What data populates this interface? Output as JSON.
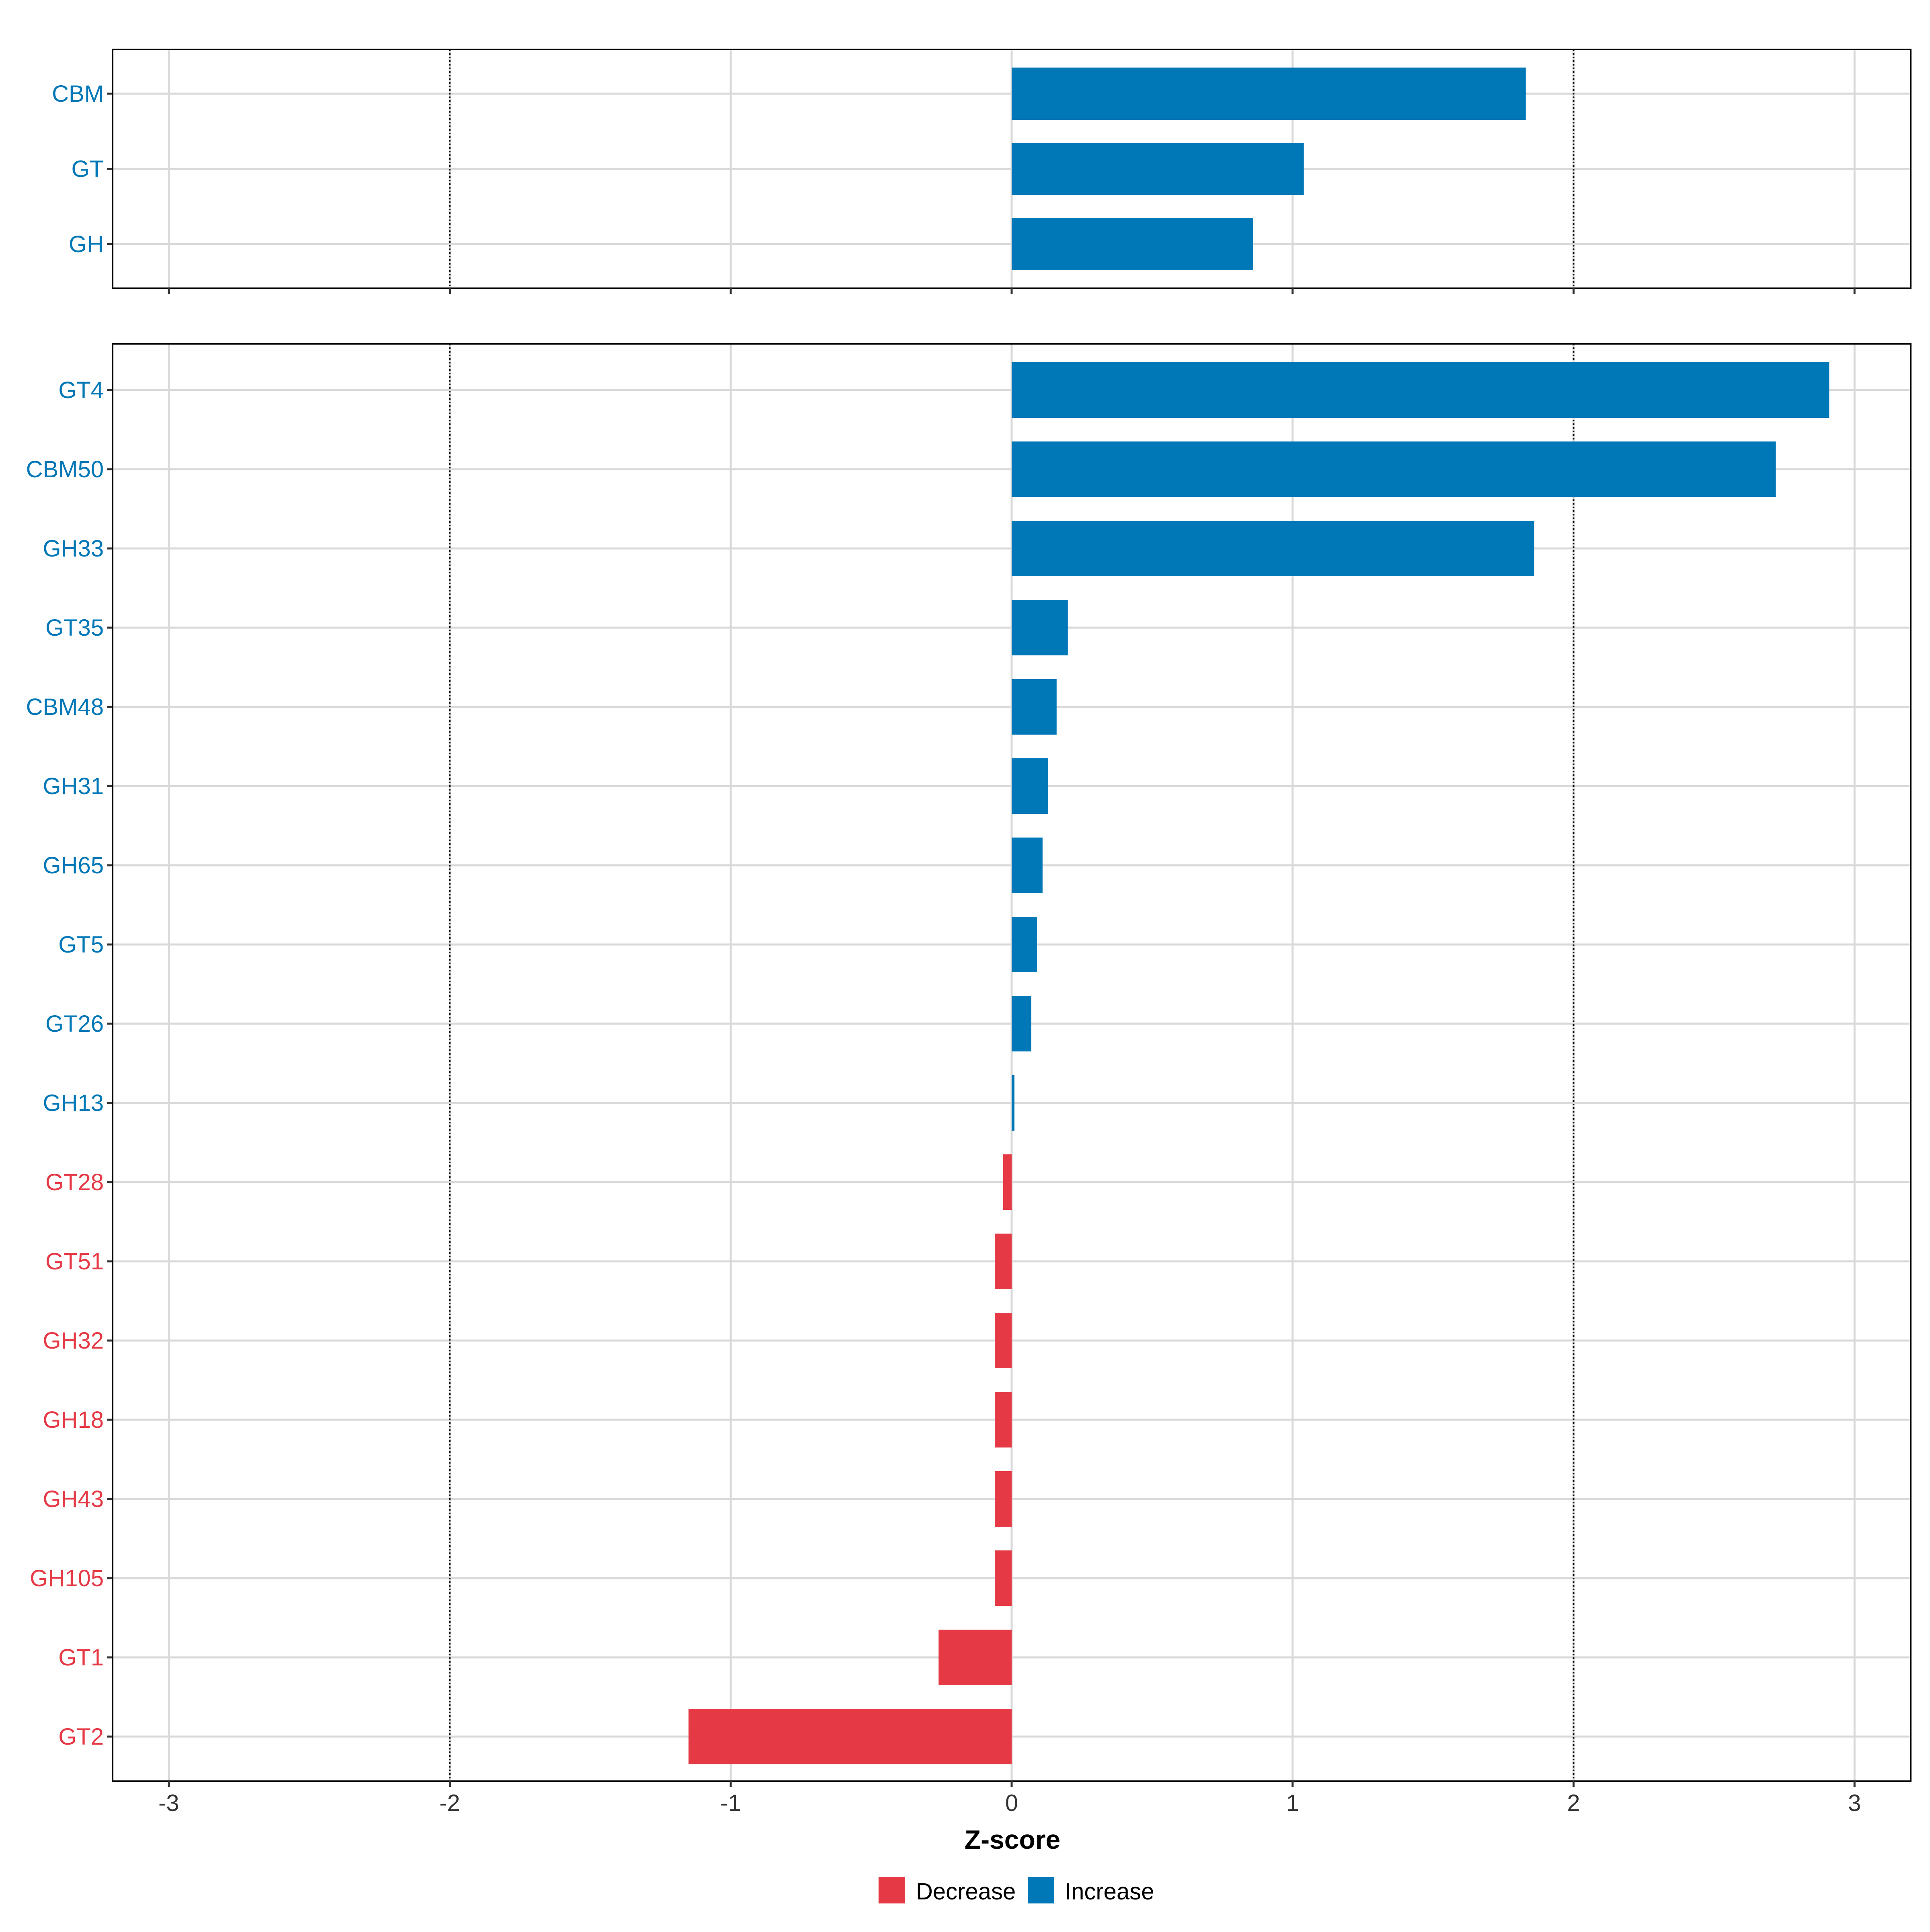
{
  "colors": {
    "increase": "#0077b6",
    "decrease": "#e63946",
    "grid": "#d9d9d9",
    "axis": "#000000",
    "tick_text": "#333333"
  },
  "legend": {
    "position": "bottom",
    "items": [
      {
        "label": "Decrease",
        "color": "#e63946"
      },
      {
        "label": "Increase",
        "color": "#0077b6"
      }
    ]
  },
  "chart_data": [
    {
      "type": "bar",
      "orientation": "horizontal",
      "panel": "top",
      "categories": [
        "CBM",
        "GT",
        "GH"
      ],
      "values": [
        1.83,
        1.04,
        0.86
      ],
      "direction": [
        "Increase",
        "Increase",
        "Increase"
      ],
      "xlim": [
        -3.2,
        3.2
      ],
      "xticks": [
        "-3",
        "-2",
        "-1",
        "0",
        "1",
        "2",
        "3"
      ],
      "reference_lines": [
        -2,
        2
      ],
      "grid": true
    },
    {
      "type": "bar",
      "orientation": "horizontal",
      "panel": "bottom",
      "categories": [
        "GT4",
        "CBM50",
        "GH33",
        "GT35",
        "CBM48",
        "GH31",
        "GH65",
        "GT5",
        "GT26",
        "GH13",
        "GT28",
        "GT51",
        "GH32",
        "GH18",
        "GH43",
        "GH105",
        "GT1",
        "GT2"
      ],
      "values": [
        2.91,
        2.72,
        1.86,
        0.2,
        0.16,
        0.13,
        0.11,
        0.09,
        0.07,
        0.01,
        -0.03,
        -0.06,
        -0.06,
        -0.06,
        -0.06,
        -0.06,
        -0.26,
        -1.15
      ],
      "direction": [
        "Increase",
        "Increase",
        "Increase",
        "Increase",
        "Increase",
        "Increase",
        "Increase",
        "Increase",
        "Increase",
        "Increase",
        "Decrease",
        "Decrease",
        "Decrease",
        "Decrease",
        "Decrease",
        "Decrease",
        "Decrease",
        "Decrease"
      ],
      "xlim": [
        -3.2,
        3.2
      ],
      "xticks": [
        "-3",
        "-2",
        "-1",
        "0",
        "1",
        "2",
        "3"
      ],
      "reference_lines": [
        -2,
        2
      ],
      "grid": true,
      "xlabel": "Z-score"
    }
  ]
}
